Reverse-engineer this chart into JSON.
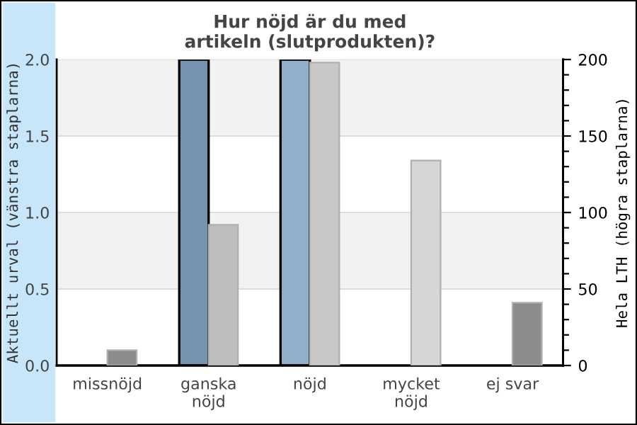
{
  "chart_data": {
    "type": "bar",
    "title": "Hur nöjd är du med\nartikeln (slutprodukten)?",
    "categories": [
      "missnöjd",
      "ganska\nnöjd",
      "nöjd",
      "mycket\nnöjd",
      "ej svar"
    ],
    "xlabel": null,
    "ylabel": "Aktuellt urval (vänstra staplarna)",
    "y2label": "Hela LTH (högra staplarna)",
    "series": [
      {
        "values": [
          null,
          2,
          2,
          null,
          null
        ],
        "colors": [
          "#7393b0",
          "#7393b0",
          "#8fafca",
          "#8fafca",
          "#8fafca"
        ]
      },
      {
        "values": [
          10,
          92,
          198,
          134,
          41
        ],
        "axis": "y2",
        "colors": [
          "#8c8c8c",
          "#bebebe",
          "#c8c8c8",
          "#d6d6d6",
          "#8c8c8c"
        ]
      }
    ],
    "ylim": [
      0,
      2
    ],
    "yticks": [
      {
        "value": 0,
        "label": "0.0"
      },
      0.5,
      {
        "value": 1,
        "label": "1.0"
      },
      1.5,
      {
        "value": 2,
        "label": "2.0"
      }
    ],
    "y2lim": [
      0,
      200
    ],
    "y2ticks": [
      0,
      {
        "value": 10,
        "label": null
      },
      {
        "value": 20,
        "label": null
      },
      {
        "value": 30,
        "label": null
      },
      {
        "value": 40,
        "label": null
      },
      50,
      {
        "value": 60,
        "label": null
      },
      {
        "value": 70,
        "label": null
      },
      {
        "value": 80,
        "label": null
      },
      {
        "value": 90,
        "label": null
      },
      100,
      {
        "value": 110,
        "label": null
      },
      {
        "value": 120,
        "label": null
      },
      {
        "value": 130,
        "label": null
      },
      {
        "value": 140,
        "label": null
      },
      150,
      {
        "value": 160,
        "label": null
      },
      {
        "value": 170,
        "label": null
      },
      {
        "value": 180,
        "label": null
      },
      {
        "value": 190,
        "label": null
      },
      200
    ],
    "bands": [
      {
        "axis": "y",
        "from": 0.5,
        "to": 1.0,
        "color": "#f2f2f2"
      },
      {
        "axis": "y",
        "from": 1.5,
        "to": 2.0,
        "color": "#f2f2f2"
      }
    ],
    "grid": "y",
    "legend": false
  }
}
